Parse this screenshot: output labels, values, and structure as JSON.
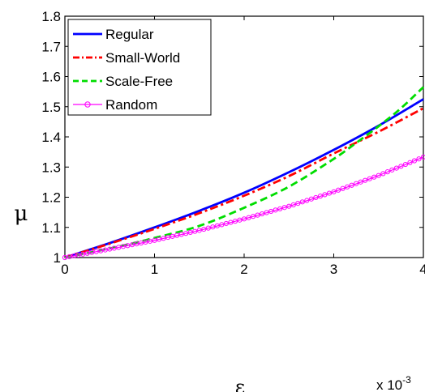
{
  "chart_data": {
    "type": "line",
    "xlabel": "ε",
    "ylabel": "μ",
    "x_multiplier": "x 10",
    "x_multiplier_exponent": "-3",
    "xlim": [
      0,
      4
    ],
    "ylim": [
      1,
      1.8
    ],
    "xticks": [
      "0",
      "1",
      "2",
      "3",
      "4"
    ],
    "yticks": [
      "1",
      "1.1",
      "1.2",
      "1.3",
      "1.4",
      "1.5",
      "1.6",
      "1.7",
      "1.8"
    ],
    "xtick_values": [
      0,
      1,
      2,
      3,
      4
    ],
    "ytick_values": [
      1,
      1.1,
      1.2,
      1.3,
      1.4,
      1.5,
      1.6,
      1.7,
      1.8
    ],
    "legend_position": "top-left",
    "grid": false,
    "series": [
      {
        "name": "Regular",
        "color": "#0000ff",
        "style": "solid",
        "x": [
          0,
          0.5,
          1,
          1.5,
          2,
          2.5,
          3,
          3.5,
          4
        ],
        "y": [
          1,
          1.048,
          1.1,
          1.155,
          1.215,
          1.283,
          1.357,
          1.437,
          1.525
        ]
      },
      {
        "name": "Small-World",
        "color": "#ff0000",
        "style": "dashdot",
        "x": [
          0,
          0.5,
          1,
          1.5,
          2,
          2.5,
          3,
          3.5,
          4
        ],
        "y": [
          1,
          1.046,
          1.095,
          1.147,
          1.205,
          1.27,
          1.345,
          1.417,
          1.495
        ]
      },
      {
        "name": "Scale-Free",
        "color": "#00dd00",
        "style": "dashed",
        "x": [
          0,
          0.5,
          1,
          1.5,
          2,
          2.5,
          3,
          3.25,
          3.5,
          3.75,
          4
        ],
        "y": [
          1,
          1.03,
          1.065,
          1.105,
          1.165,
          1.235,
          1.327,
          1.38,
          1.435,
          1.495,
          1.565
        ]
      },
      {
        "name": "Random",
        "color": "#ff00ff",
        "style": "marker-circle",
        "x": [
          0,
          0.5,
          1,
          1.5,
          2,
          2.5,
          3,
          3.5,
          4
        ],
        "y": [
          1,
          1.028,
          1.057,
          1.09,
          1.128,
          1.17,
          1.218,
          1.272,
          1.333
        ]
      }
    ]
  }
}
